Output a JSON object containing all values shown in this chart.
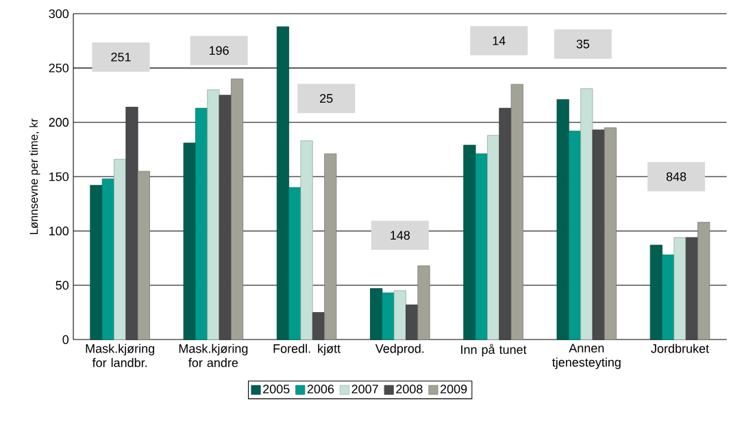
{
  "chart_data": {
    "type": "bar",
    "ylabel": "Lønnsevne per time, kr",
    "categories": [
      "Mask.kjøring for landbr.",
      "Mask.kjøring for andre",
      "Foredl. kjøtt",
      "Vedprod.",
      "Inn på tunet",
      "Annen tjenesteyting",
      "Jordbruket"
    ],
    "series": [
      {
        "name": "2005",
        "color": "#005f50",
        "values": [
          142,
          181,
          288,
          47,
          179,
          221,
          87
        ]
      },
      {
        "name": "2006",
        "color": "#009b8d",
        "values": [
          148,
          213,
          140,
          43,
          171,
          192,
          78
        ]
      },
      {
        "name": "2007",
        "color": "#c6e2d8",
        "values": [
          166,
          230,
          183,
          45,
          188,
          231,
          94
        ]
      },
      {
        "name": "2008",
        "color": "#4a4a4c",
        "values": [
          214,
          225,
          25,
          32,
          213,
          193,
          94
        ]
      },
      {
        "name": "2009",
        "color": "#a2a396",
        "values": [
          155,
          240,
          171,
          68,
          235,
          195,
          108
        ]
      }
    ],
    "ylim": [
      0,
      300
    ],
    "yticks": [
      0,
      50,
      100,
      150,
      200,
      250,
      300
    ],
    "grid": "y",
    "legend": "bottom",
    "annotations": [
      "251",
      "196",
      "25",
      "148",
      "14",
      "35",
      "848"
    ]
  }
}
